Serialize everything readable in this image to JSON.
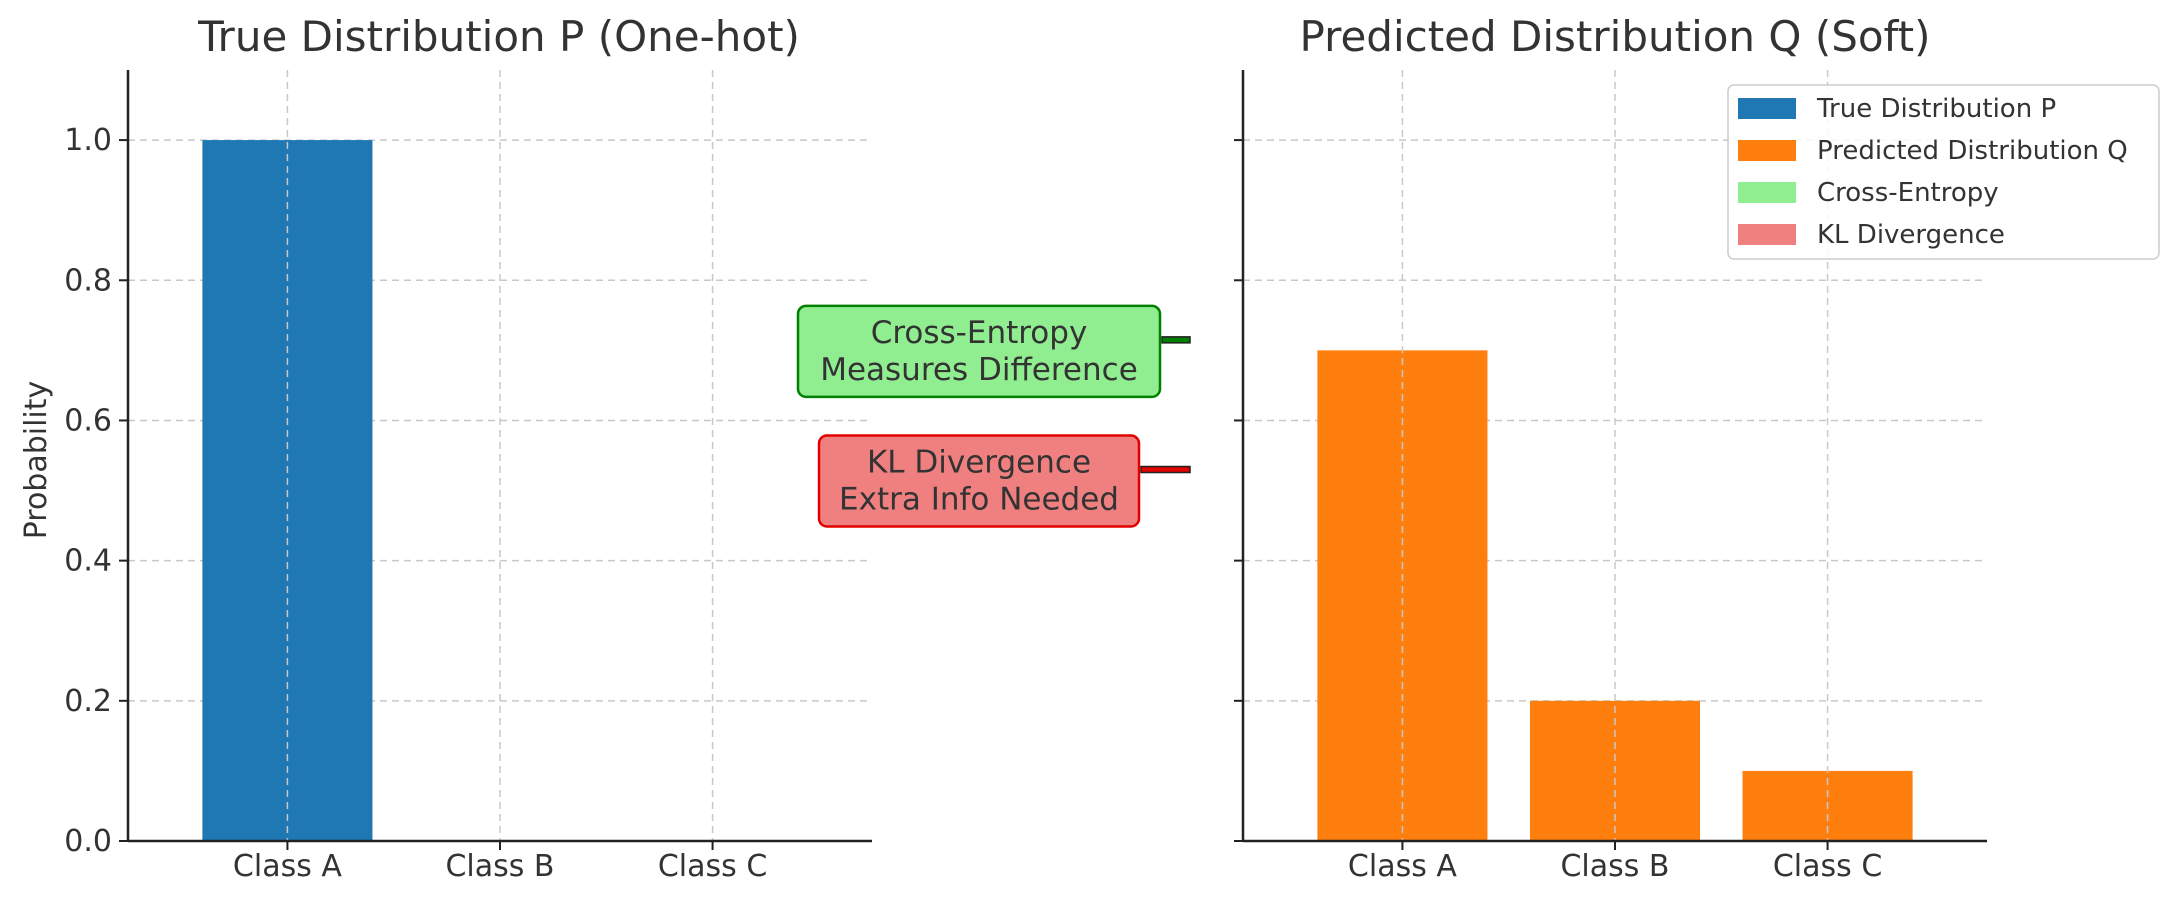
{
  "chart_data": [
    {
      "type": "bar",
      "title": "True Distribution P (One-hot)",
      "ylabel": "Probability",
      "xlabel": "",
      "categories": [
        "Class A",
        "Class B",
        "Class C"
      ],
      "values": [
        1.0,
        0.0,
        0.0
      ],
      "ylim": [
        0,
        1.1
      ],
      "yticks": [
        "0.0",
        "0.2",
        "0.4",
        "0.6",
        "0.8",
        "1.0"
      ],
      "grid": true,
      "color": "#1f77b4"
    },
    {
      "type": "bar",
      "title": "Predicted Distribution Q (Soft)",
      "ylabel": "",
      "xlabel": "",
      "categories": [
        "Class A",
        "Class B",
        "Class C"
      ],
      "values": [
        0.7,
        0.2,
        0.1
      ],
      "ylim": [
        0,
        1.1
      ],
      "grid": true,
      "color": "#ff7f0e"
    }
  ],
  "legend": {
    "placement": "top-right",
    "entries": [
      {
        "label": "True Distribution P",
        "color": "#1f77b4"
      },
      {
        "label": "Predicted Distribution Q",
        "color": "#ff7f0e"
      },
      {
        "label": "Cross-Entropy",
        "color": "#90ee90"
      },
      {
        "label": "KL Divergence",
        "color": "#f08080"
      }
    ]
  },
  "annotations": [
    {
      "line1": "Cross-Entropy",
      "line2": "Measures Difference",
      "y": 0.715,
      "fill": "#90ee90",
      "edge": "#008000"
    },
    {
      "line1": "KL Divergence",
      "line2": "Extra Info Needed",
      "y": 0.53,
      "fill": "#f08080",
      "edge": "#e00000"
    }
  ]
}
